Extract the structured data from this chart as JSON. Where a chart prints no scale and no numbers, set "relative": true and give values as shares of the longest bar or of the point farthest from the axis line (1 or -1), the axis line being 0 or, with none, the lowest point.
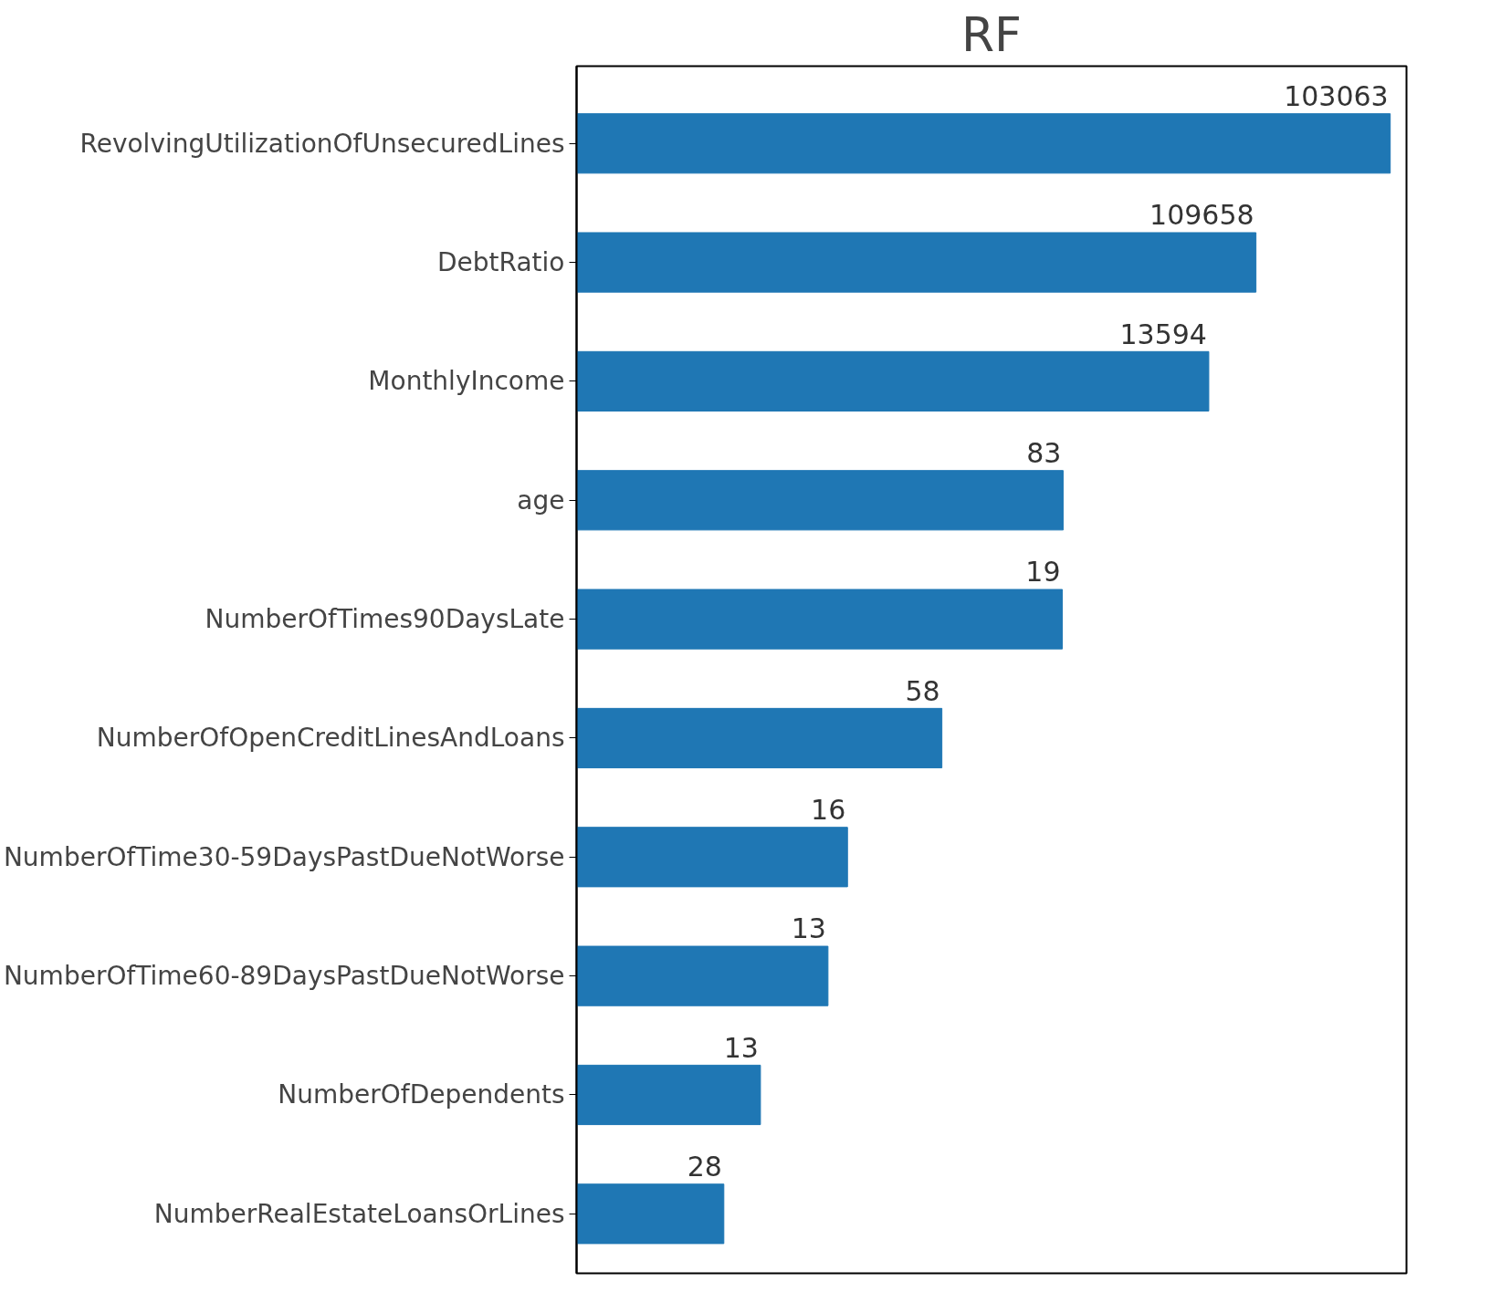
{
  "chart_data": {
    "type": "bar",
    "orientation": "horizontal",
    "relative": true,
    "title": "RF",
    "categories": [
      "RevolvingUtilizationOfUnsecuredLines",
      "DebtRatio",
      "MonthlyIncome",
      "age",
      "NumberOfTimes90DaysLate",
      "NumberOfOpenCreditLinesAndLoans",
      "NumberOfTime30-59DaysPastDueNotWorse",
      "NumberOfTime60-89DaysPastDueNotWorse",
      "NumberOfDependents",
      "NumberRealEstateLoansOrLines"
    ],
    "values": [
      1,
      0.835,
      0.777,
      0.598,
      0.597,
      0.449,
      0.333,
      0.309,
      0.226,
      0.181
    ],
    "annotations": [
      {
        "text": "103063",
        "x": 1,
        "y": "RevolvingUtilizationOfUnsecuredLines"
      },
      {
        "text": "109658",
        "x": 0.835,
        "y": "DebtRatio"
      },
      {
        "text": "13594",
        "x": 0.777,
        "y": "MonthlyIncome"
      },
      {
        "text": "83",
        "x": 0.598,
        "y": "age"
      },
      {
        "text": "19",
        "x": 0.597,
        "y": "NumberOfTimes90DaysLate"
      },
      {
        "text": "58",
        "x": 0.449,
        "y": "NumberOfOpenCreditLinesAndLoans"
      },
      {
        "text": "16",
        "x": 0.333,
        "y": "NumberOfTime30-59DaysPastDueNotWorse"
      },
      {
        "text": "13",
        "x": 0.309,
        "y": "NumberOfTime60-89DaysPastDueNotWorse"
      },
      {
        "text": "13",
        "x": 0.226,
        "y": "NumberOfDependents"
      },
      {
        "text": "28",
        "x": 0.181,
        "y": "NumberRealEstateLoansOrLines"
      }
    ],
    "color": "#1f77b4"
  }
}
